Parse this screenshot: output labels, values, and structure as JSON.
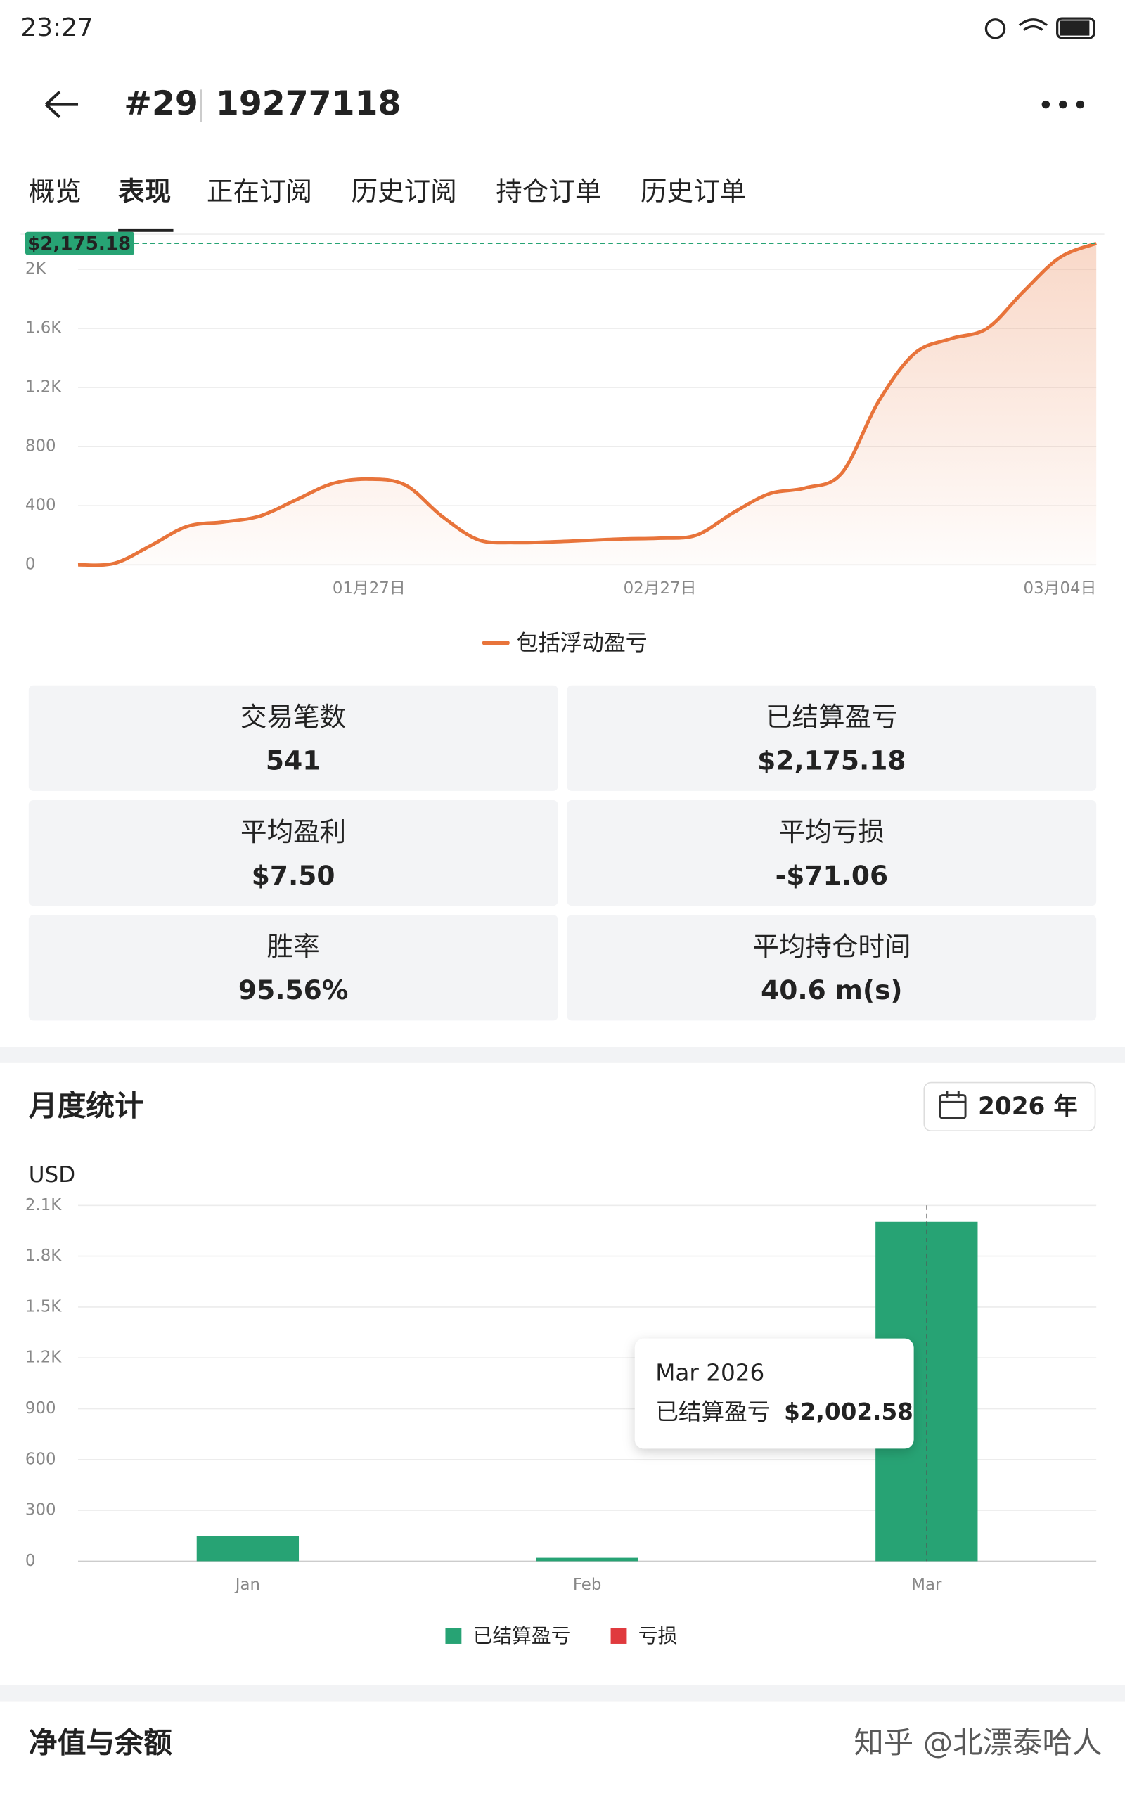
{
  "status_bar": {
    "time": "23:27"
  },
  "header": {
    "rank": "#29",
    "account": "19277118"
  },
  "tabs": [
    "概览",
    "表现",
    "正在订阅",
    "历史订阅",
    "持仓订单",
    "历史订单"
  ],
  "active_tab": 1,
  "performance_chart": {
    "chart_data": {
      "type": "line",
      "categories": [
        null,
        null,
        null,
        null,
        null,
        null,
        null,
        null,
        "01月27日",
        null,
        null,
        null,
        null,
        null,
        null,
        null,
        "02月27日",
        null,
        null,
        null,
        null,
        null,
        null,
        null,
        null,
        null,
        null,
        "03月04日",
        null
      ],
      "series": [
        {
          "name": "包括浮动盈亏",
          "color": "#e8743b",
          "values": [
            0,
            10,
            130,
            260,
            290,
            330,
            440,
            550,
            580,
            540,
            330,
            170,
            150,
            155,
            165,
            175,
            180,
            200,
            350,
            480,
            520,
            620,
            1100,
            1430,
            1530,
            1600,
            1850,
            2080,
            2175.18
          ]
        }
      ],
      "ylim": [
        0,
        2175.18
      ],
      "yticks": [
        0,
        400,
        800,
        {
          "value": 1200,
          "label": "1.2K"
        },
        {
          "value": 1600,
          "label": "1.6K"
        },
        {
          "value": 2000,
          "label": "2K"
        }
      ],
      "reference_line": {
        "value": 2175.18,
        "label": "$2,175.18"
      },
      "grid": true
    }
  },
  "stats": [
    {
      "label": "交易笔数",
      "value": "541"
    },
    {
      "label": "已结算盈亏",
      "value": "$2,175.18",
      "color": "#27a374"
    },
    {
      "label": "平均盈利",
      "value": "$7.50"
    },
    {
      "label": "平均亏损",
      "value": "-$71.06"
    },
    {
      "label": "胜率",
      "value": "95.56%"
    },
    {
      "label": "平均持仓时间",
      "value": "40.6 m(s)"
    }
  ],
  "monthly": {
    "title": "月度统计",
    "year_selector": "2026 年",
    "chart_data": {
      "type": "bar",
      "y_label": "USD",
      "categories": [
        "Jan",
        "Feb",
        "Mar"
      ],
      "series": [
        {
          "name": "已结算盈亏",
          "color": "#27a374",
          "values": [
            150,
            20,
            2002.58
          ],
          "value_labels": [
            null,
            null,
            "$2,002.58"
          ]
        },
        {
          "name": "亏损",
          "color": "#e03a3e",
          "values": [
            0,
            0,
            0
          ]
        }
      ],
      "ylim": [
        0,
        2100
      ],
      "yticks": [
        0,
        300,
        600,
        900,
        {
          "value": 1200,
          "label": "1.2K"
        },
        {
          "value": 1500,
          "label": "1.5K"
        },
        {
          "value": 1800,
          "label": "1.8K"
        },
        {
          "value": 2100,
          "label": "2.1K"
        }
      ],
      "grid": true,
      "tooltip": {
        "title": "Mar 2026"
      }
    }
  },
  "equity_section": {
    "title": "净值与余额"
  },
  "watermark": "知乎 @北漂泰哈人"
}
